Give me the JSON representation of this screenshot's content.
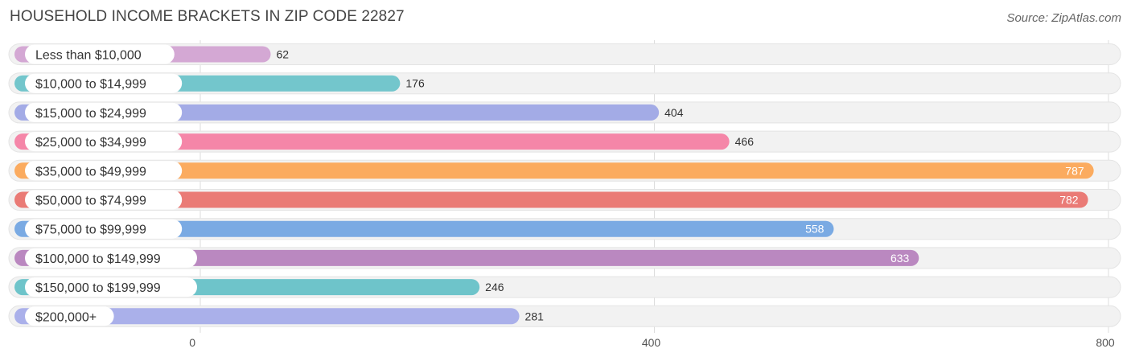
{
  "header": {
    "title": "HOUSEHOLD INCOME BRACKETS IN ZIP CODE 22827",
    "source": "Source: ZipAtlas.com"
  },
  "chart_data": {
    "type": "bar",
    "orientation": "horizontal",
    "categories": [
      "Less than $10,000",
      "$10,000 to $14,999",
      "$15,000 to $24,999",
      "$25,000 to $34,999",
      "$35,000 to $49,999",
      "$50,000 to $74,999",
      "$75,000 to $99,999",
      "$100,000 to $149,999",
      "$150,000 to $199,999",
      "$200,000+"
    ],
    "values": [
      62,
      176,
      404,
      466,
      787,
      782,
      558,
      633,
      246,
      281
    ],
    "colors": [
      "#d4a8d4",
      "#73c6cc",
      "#a3abe6",
      "#f586a8",
      "#fbab5f",
      "#ea7b76",
      "#7aaae3",
      "#ba88c0",
      "#6ec4ca",
      "#aab0ea"
    ],
    "x_ticks": [
      0,
      400,
      800
    ],
    "xlim": [
      0,
      800
    ],
    "grid": true,
    "title": "HOUSEHOLD INCOME BRACKETS IN ZIP CODE 22827",
    "xlabel": "",
    "ylabel": ""
  }
}
